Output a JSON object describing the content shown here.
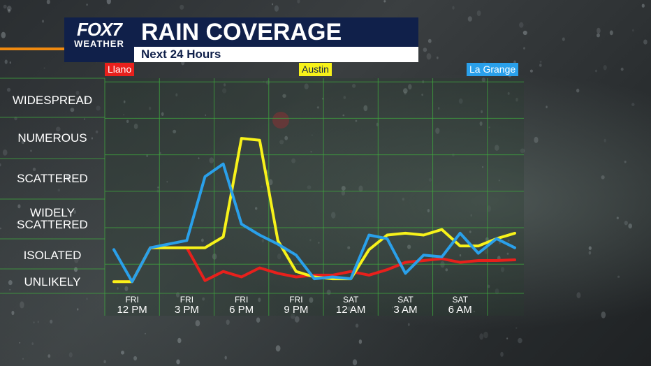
{
  "brand": {
    "logo_main": "FOX7",
    "logo_sub": "WEATHER"
  },
  "header": {
    "title": "RAIN COVERAGE",
    "subtitle": "Next 24 Hours"
  },
  "colors": {
    "llano": "#e8201c",
    "austin": "#f7f21a",
    "la_grange": "#2aa0ea",
    "brand_navy": "#10204a",
    "accent_orange": "#f08a10"
  },
  "chart_data": {
    "type": "line",
    "title": "RAIN COVERAGE",
    "subtitle": "Next 24 Hours",
    "y_categories": [
      "UNLIKELY",
      "ISOLATED",
      "WIDELY SCATTERED",
      "SCATTERED",
      "NUMEROUS",
      "WIDESPREAD"
    ],
    "y_category_lines": [
      [
        "UNLIKELY"
      ],
      [
        "ISOLATED"
      ],
      [
        "WIDELY",
        "SCATTERED"
      ],
      [
        "SCATTERED"
      ],
      [
        "NUMEROUS"
      ],
      [
        "WIDESPREAD"
      ]
    ],
    "y_scale_note": "0=UNLIKELY ... 5=WIDESPREAD",
    "ylim": [
      -0.3,
      5.6
    ],
    "xlim": [
      -1.5,
      21.5
    ],
    "x_ticks": [
      {
        "hour": 0,
        "day": "FRI",
        "time": "12 PM"
      },
      {
        "hour": 3,
        "day": "FRI",
        "time": "3 PM"
      },
      {
        "hour": 6,
        "day": "FRI",
        "time": "6 PM"
      },
      {
        "hour": 9,
        "day": "FRI",
        "time": "9 PM"
      },
      {
        "hour": 12,
        "day": "SAT",
        "time": "12 AM"
      },
      {
        "hour": 15,
        "day": "SAT",
        "time": "3 AM"
      },
      {
        "hour": 18,
        "day": "SAT",
        "time": "6 AM"
      }
    ],
    "grid": true,
    "series": [
      {
        "name": "Llano",
        "color": "#e8201c",
        "x": [
          -1,
          0,
          1,
          2,
          3,
          4,
          5,
          6,
          7,
          8,
          9,
          10,
          11,
          12,
          13,
          14,
          15,
          16,
          17,
          18,
          19,
          20,
          21
        ],
        "values": [
          0.02,
          0.02,
          0.95,
          0.95,
          0.95,
          0.05,
          0.3,
          0.15,
          0.4,
          0.25,
          0.15,
          0.2,
          0.2,
          0.3,
          0.2,
          0.35,
          0.55,
          0.6,
          0.65,
          0.55,
          0.6,
          0.6,
          0.62
        ]
      },
      {
        "name": "Austin",
        "color": "#f7f21a",
        "x": [
          -1,
          0,
          1,
          2,
          3,
          4,
          5,
          6,
          7,
          8,
          9,
          10,
          11,
          12,
          13,
          14,
          15,
          16,
          17,
          18,
          19,
          20,
          21
        ],
        "values": [
          0.02,
          0.02,
          0.95,
          0.95,
          0.95,
          0.95,
          1.25,
          3.95,
          3.9,
          1.15,
          0.3,
          0.15,
          0.1,
          0.1,
          0.9,
          1.3,
          1.35,
          1.3,
          1.45,
          1.0,
          1.0,
          1.2,
          1.35
        ]
      },
      {
        "name": "La Grange",
        "color": "#2aa0ea",
        "x": [
          -1,
          0,
          1,
          2,
          3,
          4,
          5,
          6,
          7,
          8,
          9,
          10,
          11,
          12,
          13,
          14,
          15,
          16,
          17,
          18,
          19,
          20,
          21
        ],
        "values": [
          0.9,
          0.02,
          0.95,
          1.05,
          1.15,
          2.9,
          3.25,
          1.6,
          1.3,
          1.05,
          0.75,
          0.1,
          0.15,
          0.1,
          1.3,
          1.2,
          0.25,
          0.75,
          0.7,
          1.35,
          0.8,
          1.2,
          0.95
        ]
      }
    ],
    "legend": [
      {
        "name": "Llano",
        "placement": "top-left"
      },
      {
        "name": "Austin",
        "placement": "top-center"
      },
      {
        "name": "La Grange",
        "placement": "top-right"
      }
    ]
  }
}
